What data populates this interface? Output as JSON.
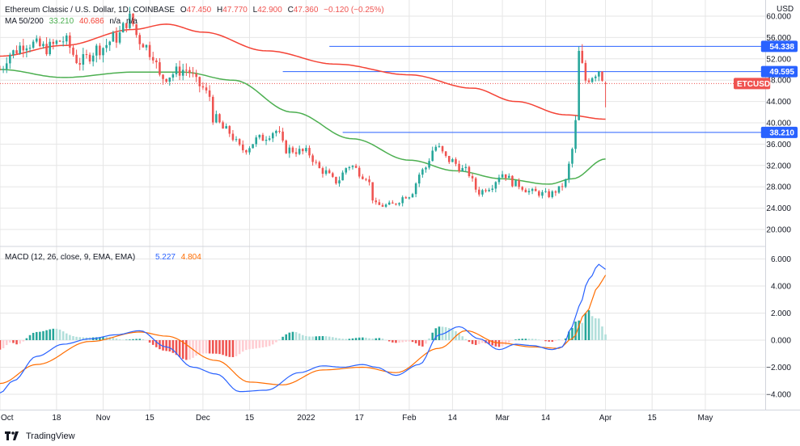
{
  "header": {
    "title": "Ethereum Classic / U.S. Dollar, 1D, COINBASE",
    "ohlc": [
      {
        "k": "O",
        "v": "47.450"
      },
      {
        "k": "H",
        "v": "47.770"
      },
      {
        "k": "L",
        "v": "42.900"
      },
      {
        "k": "C",
        "v": "47.360"
      },
      {
        "k": "",
        "v": "−0.120 (−0.25%)"
      }
    ],
    "ma_label": "MA 50/200",
    "ma_values": [
      "33.210",
      "40.686",
      "n/a",
      "n/a"
    ],
    "macd_label": "MACD (12, 26, close, 9, EMA, EMA)",
    "macd_values": [
      "5.227",
      "4.804"
    ]
  },
  "axis": {
    "currency": "USD",
    "price_ticks": [
      60,
      56,
      52,
      48,
      44,
      40,
      36,
      32,
      28,
      24,
      20
    ],
    "price_tick_labels": [
      "60.000",
      "56.000",
      "52.000",
      "48.000",
      "44.000",
      "40.000",
      "36.000",
      "32.000",
      "28.000",
      "24.000",
      "20.000"
    ],
    "macd_ticks": [
      6,
      4,
      2,
      0,
      -2,
      -4
    ],
    "macd_tick_labels": [
      "6.000",
      "4.000",
      "2.000",
      "0.000",
      "−2.000",
      "−4.000"
    ],
    "x_labels": [
      "Oct",
      "18",
      "Nov",
      "15",
      "Dec",
      "15",
      "2022",
      "17",
      "Feb",
      "14",
      "Mar",
      "14",
      "Apr",
      "15",
      "May"
    ]
  },
  "badges": {
    "symbol": "ETCUSD",
    "levels": [
      "54.338",
      "49.595",
      "38.210"
    ]
  },
  "branding": {
    "name": "TradingView"
  },
  "colors": {
    "up": "#26a69a",
    "down": "#ef5350",
    "ma50": "#4caf50",
    "ma200": "#f44336",
    "hline": "#2962ff",
    "macd": "#2962ff",
    "signal": "#ff6d00",
    "hist_up": "#26a69a",
    "hist_up_fade": "#b2dfdb",
    "hist_dn": "#ef5350",
    "hist_dn_fade": "#ffcdd2",
    "grid": "#e6e6e6"
  },
  "chart_data": {
    "type": "candlestick",
    "symbol": "ETCUSD",
    "exchange": "COINBASE",
    "interval": "1D",
    "x_range": [
      "2021-10-01",
      "2022-05-19"
    ],
    "ylim": [
      17.5,
      62
    ],
    "grid": true,
    "last_close": 47.36,
    "horizontal_levels": [
      54.338,
      49.595,
      38.21
    ],
    "anchors": {
      "price": [
        [
          "2021-10-01",
          50
        ],
        [
          "2021-10-04",
          53
        ],
        [
          "2021-10-09",
          55
        ],
        [
          "2021-10-15",
          54
        ],
        [
          "2021-10-20",
          55.5
        ],
        [
          "2021-10-25",
          51.5
        ],
        [
          "2021-10-31",
          54
        ],
        [
          "2021-11-05",
          56
        ],
        [
          "2021-11-09",
          59.5
        ],
        [
          "2021-11-12",
          55.5
        ],
        [
          "2021-11-16",
          53
        ],
        [
          "2021-11-18",
          48.5
        ],
        [
          "2021-11-26",
          50
        ],
        [
          "2021-11-30",
          47
        ],
        [
          "2021-12-03",
          45
        ],
        [
          "2021-12-04",
          41
        ],
        [
          "2021-12-08",
          38.5
        ],
        [
          "2021-12-13",
          35
        ],
        [
          "2021-12-18",
          37
        ],
        [
          "2021-12-23",
          38.5
        ],
        [
          "2021-12-26",
          35
        ],
        [
          "2022-01-01",
          34.5
        ],
        [
          "2022-01-06",
          31
        ],
        [
          "2022-01-10",
          29
        ],
        [
          "2022-01-14",
          32
        ],
        [
          "2022-01-19",
          30
        ],
        [
          "2022-01-22",
          24.5
        ],
        [
          "2022-01-26",
          24.5
        ],
        [
          "2022-02-01",
          26.5
        ],
        [
          "2022-02-05",
          31
        ],
        [
          "2022-02-09",
          35.5
        ],
        [
          "2022-02-13",
          33
        ],
        [
          "2022-02-18",
          31
        ],
        [
          "2022-02-22",
          27
        ],
        [
          "2022-02-25",
          28
        ],
        [
          "2022-03-01",
          30.5
        ],
        [
          "2022-03-05",
          28.5
        ],
        [
          "2022-03-10",
          27
        ],
        [
          "2022-03-15",
          26.5
        ],
        [
          "2022-03-18",
          27.5
        ],
        [
          "2022-03-20",
          29
        ],
        [
          "2022-03-22",
          35
        ],
        [
          "2022-03-23",
          40
        ],
        [
          "2022-03-24",
          53
        ],
        [
          "2022-03-26",
          48
        ],
        [
          "2022-03-28",
          49
        ],
        [
          "2022-03-30",
          50
        ],
        [
          "2022-04-01",
          47.36
        ]
      ],
      "ma50": [
        [
          "2021-10-01",
          50
        ],
        [
          "2021-10-20",
          48.5
        ],
        [
          "2021-11-10",
          49.5
        ],
        [
          "2021-11-25",
          49.5
        ],
        [
          "2021-12-10",
          48
        ],
        [
          "2021-12-28",
          42
        ],
        [
          "2022-01-15",
          37
        ],
        [
          "2022-02-01",
          33
        ],
        [
          "2022-02-15",
          31
        ],
        [
          "2022-03-01",
          29.5
        ],
        [
          "2022-03-15",
          28.5
        ],
        [
          "2022-03-22",
          29.5
        ],
        [
          "2022-04-01",
          33.21
        ]
      ],
      "ma200": [
        [
          "2021-10-01",
          52.5
        ],
        [
          "2021-10-20",
          54.5
        ],
        [
          "2021-11-10",
          57.5
        ],
        [
          "2021-11-20",
          58.5
        ],
        [
          "2021-12-01",
          57
        ],
        [
          "2021-12-20",
          53.5
        ],
        [
          "2022-01-10",
          51
        ],
        [
          "2022-02-01",
          49
        ],
        [
          "2022-02-20",
          46.5
        ],
        [
          "2022-03-05",
          44
        ],
        [
          "2022-03-20",
          41.5
        ],
        [
          "2022-04-01",
          40.686
        ]
      ],
      "macd": [
        [
          "2021-10-01",
          -3.9
        ],
        [
          "2021-10-05",
          -3
        ],
        [
          "2021-10-12",
          -1.2
        ],
        [
          "2021-10-20",
          -0.3
        ],
        [
          "2021-10-28",
          0.1
        ],
        [
          "2021-11-05",
          0.4
        ],
        [
          "2021-11-12",
          0.7
        ],
        [
          "2021-11-20",
          -0.5
        ],
        [
          "2021-11-28",
          -2
        ],
        [
          "2021-12-05",
          -2.5
        ],
        [
          "2021-12-12",
          -3.8
        ],
        [
          "2021-12-20",
          -3.7
        ],
        [
          "2021-12-30",
          -2.4
        ],
        [
          "2022-01-06",
          -1.9
        ],
        [
          "2022-01-12",
          -2
        ],
        [
          "2022-01-18",
          -1.8
        ],
        [
          "2022-01-22",
          -2
        ],
        [
          "2022-01-28",
          -2.6
        ],
        [
          "2022-02-04",
          -1.8
        ],
        [
          "2022-02-10",
          0.4
        ],
        [
          "2022-02-16",
          1
        ],
        [
          "2022-02-22",
          0.1
        ],
        [
          "2022-02-28",
          -0.7
        ],
        [
          "2022-03-05",
          -0.3
        ],
        [
          "2022-03-10",
          -0.4
        ],
        [
          "2022-03-16",
          -0.7
        ],
        [
          "2022-03-19",
          -0.5
        ],
        [
          "2022-03-22",
          1
        ],
        [
          "2022-03-24",
          2.5
        ],
        [
          "2022-03-27",
          4.5
        ],
        [
          "2022-03-30",
          5.6
        ],
        [
          "2022-04-01",
          5.227
        ]
      ],
      "signal": [
        [
          "2021-10-01",
          -3.2
        ],
        [
          "2021-10-12",
          -1.8
        ],
        [
          "2021-10-28",
          -0.1
        ],
        [
          "2021-11-12",
          0.6
        ],
        [
          "2021-11-20",
          0.3
        ],
        [
          "2021-12-05",
          -1.5
        ],
        [
          "2021-12-15",
          -3.1
        ],
        [
          "2021-12-25",
          -3.3
        ],
        [
          "2022-01-06",
          -2.2
        ],
        [
          "2022-01-18",
          -2
        ],
        [
          "2022-01-28",
          -2.4
        ],
        [
          "2022-02-10",
          -0.6
        ],
        [
          "2022-02-18",
          0.7
        ],
        [
          "2022-02-28",
          -0.2
        ],
        [
          "2022-03-10",
          -0.5
        ],
        [
          "2022-03-18",
          -0.6
        ],
        [
          "2022-03-22",
          0.1
        ],
        [
          "2022-03-26",
          2
        ],
        [
          "2022-03-30",
          4
        ],
        [
          "2022-04-01",
          4.804
        ]
      ]
    }
  }
}
